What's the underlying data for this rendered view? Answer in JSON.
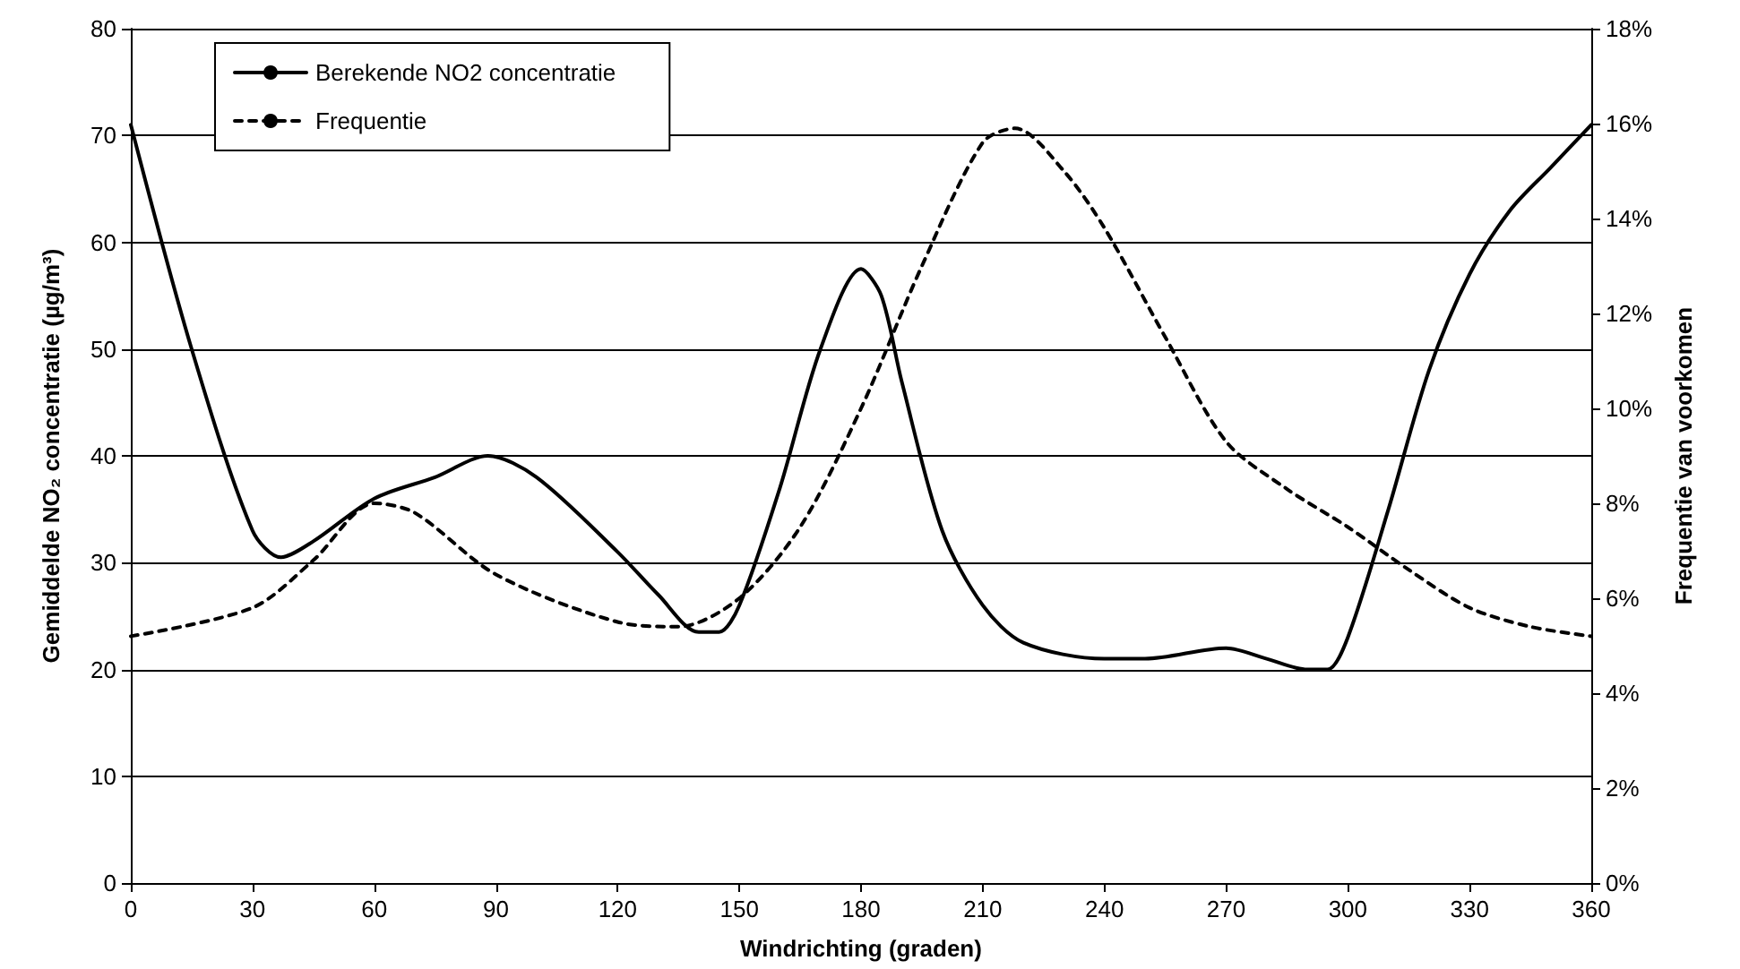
{
  "chart_data": {
    "type": "line",
    "xlabel": "Windrichting (graden)",
    "ylabel": "Gemiddelde NO₂ concentratie (µg/m³)",
    "y2label": "Frequentie van voorkomen",
    "xlim": [
      0,
      360
    ],
    "xticks": [
      0,
      30,
      60,
      90,
      120,
      150,
      180,
      210,
      240,
      270,
      300,
      330,
      360
    ],
    "ylim": [
      0,
      80
    ],
    "yticks": [
      0,
      10,
      20,
      30,
      40,
      50,
      60,
      70,
      80
    ],
    "y2lim": [
      0,
      18
    ],
    "y2ticks": [
      {
        "value": 0,
        "label": "0%"
      },
      {
        "value": 2,
        "label": "2%"
      },
      {
        "value": 4,
        "label": "4%"
      },
      {
        "value": 6,
        "label": "6%"
      },
      {
        "value": 8,
        "label": "8%"
      },
      {
        "value": 10,
        "label": "10%"
      },
      {
        "value": 12,
        "label": "12%"
      },
      {
        "value": 14,
        "label": "14%"
      },
      {
        "value": 16,
        "label": "16%"
      },
      {
        "value": 18,
        "label": "18%"
      }
    ],
    "grid": "y",
    "legend": "top left",
    "marker": "none",
    "series": [
      {
        "name": "Berekende NO2 concentratie",
        "color": "#000000",
        "line_style": "solid",
        "x": [
          0,
          15,
          30,
          37,
          45,
          60,
          75,
          88,
          100,
          120,
          130,
          140,
          145,
          150,
          160,
          170,
          180,
          185,
          190,
          200,
          210,
          220,
          240,
          250,
          270,
          280,
          290,
          295,
          300,
          310,
          320,
          330,
          340,
          350,
          360
        ],
        "values": [
          71,
          50,
          33,
          30.5,
          32,
          36,
          38,
          40,
          38,
          31,
          27,
          23.5,
          23.5,
          26,
          37,
          50,
          57.5,
          55,
          47,
          33,
          26,
          22.5,
          21,
          21,
          22,
          21,
          20,
          20,
          23,
          35,
          48,
          57,
          63,
          67,
          71
        ]
      },
      {
        "name": "Frequentie",
        "color": "#000000",
        "line_style": "dashed",
        "axis": "y2",
        "x": [
          0,
          30,
          45,
          60,
          70,
          90,
          120,
          135,
          150,
          165,
          180,
          195,
          210,
          218,
          230,
          240,
          255,
          270,
          285,
          300,
          315,
          330,
          345,
          360
        ],
        "values": [
          5.2,
          5.8,
          6.8,
          8.0,
          7.8,
          6.5,
          5.5,
          5.4,
          6.0,
          7.5,
          10,
          13,
          15.6,
          15.9,
          15.0,
          13.8,
          11.5,
          9.3,
          8.3,
          7.5,
          6.6,
          5.8,
          5.4,
          5.2
        ]
      }
    ]
  }
}
